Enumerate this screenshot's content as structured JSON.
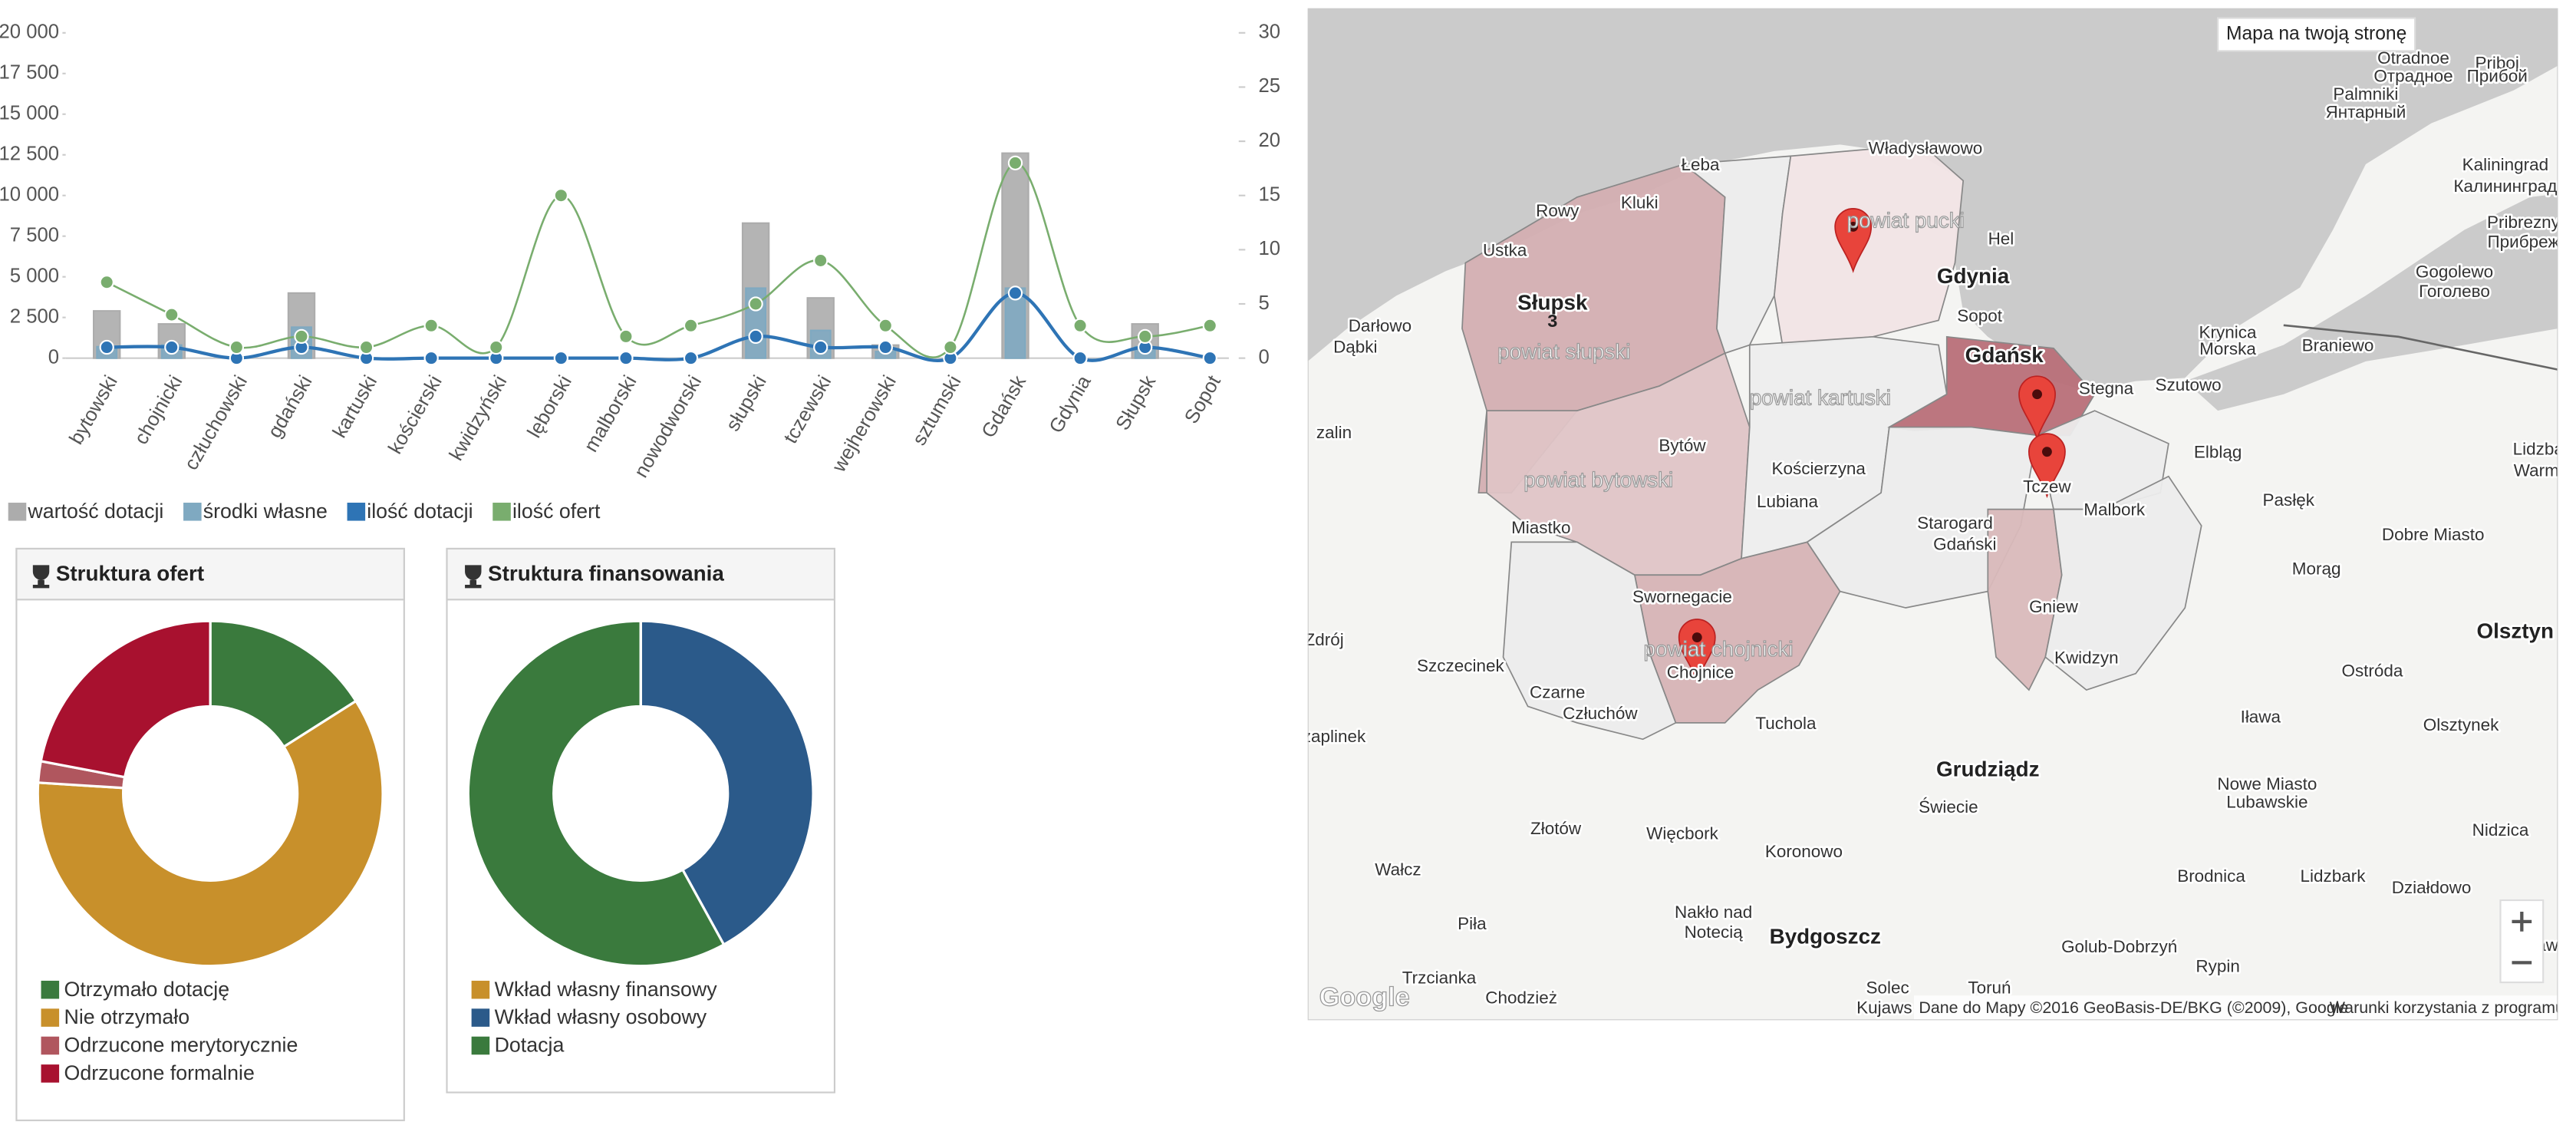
{
  "chart_data": [
    {
      "type": "combo",
      "categories": [
        "bytowski",
        "chojnicki",
        "człuchowski",
        "gdański",
        "kartuski",
        "kościerski",
        "kwidzyński",
        "lęborski",
        "malborski",
        "nowodworski",
        "słupski",
        "tczewski",
        "wejherowski",
        "sztumski",
        "Gdańsk",
        "Gdynia",
        "Słupsk",
        "Sopot"
      ],
      "ylim": [
        0,
        20000
      ],
      "yticks": [
        0,
        {
          "value": 2500,
          "label": "2 500"
        },
        {
          "value": 5000,
          "label": "5 000"
        },
        {
          "value": 7500,
          "label": "7 500"
        },
        {
          "value": 10000,
          "label": "10 000"
        },
        {
          "value": 12500,
          "label": "12 500"
        },
        {
          "value": 15000,
          "label": "15 000"
        },
        {
          "value": 17500,
          "label": "17 500"
        },
        {
          "value": 20000,
          "label": "20 000"
        }
      ],
      "y2lim": [
        0,
        30
      ],
      "y2ticks": [
        0,
        5,
        10,
        15,
        20,
        25,
        30
      ],
      "series": [
        {
          "name": "wartość dotacji",
          "type": "bar",
          "color": "#acacac",
          "values": [
            2900,
            2100,
            0,
            4000,
            0,
            0,
            0,
            0,
            0,
            0,
            8300,
            3700,
            800,
            0,
            12600,
            0,
            2100,
            0
          ]
        },
        {
          "name": "środki własne",
          "type": "bar",
          "color": "#7fa9c1",
          "values": [
            700,
            800,
            0,
            1900,
            0,
            0,
            0,
            0,
            0,
            0,
            4300,
            1700,
            400,
            0,
            4300,
            0,
            700,
            0
          ]
        },
        {
          "name": "ilość dotacji",
          "type": "line",
          "axis": "y2",
          "color": "#2e74b5",
          "values": [
            1,
            1,
            0,
            1,
            0,
            0,
            0,
            0,
            0,
            0,
            2,
            1,
            1,
            0,
            6,
            0,
            1,
            0
          ]
        },
        {
          "name": "ilość ofert",
          "type": "line",
          "axis": "y2",
          "color": "#79ad6e",
          "values": [
            7,
            4,
            1,
            2,
            1,
            3,
            1,
            15,
            2,
            3,
            5,
            9,
            3,
            1,
            18,
            3,
            2,
            3
          ]
        }
      ]
    },
    {
      "type": "donut",
      "title": "Struktura ofert",
      "categories": [
        "Otrzymało dotację",
        "Nie otrzymało",
        "Odrzucone merytorycznie",
        "Odrzucone formalnie"
      ],
      "values": [
        16,
        60,
        2,
        22
      ],
      "colors": [
        "#3a7a3d",
        "#c8902b",
        "#b0565e",
        "#a8112f"
      ]
    },
    {
      "type": "donut",
      "title": "Struktura finansowania",
      "categories": [
        "Wkład własny finansowy",
        "Wkład własny osobowy",
        "Dotacja"
      ],
      "values": [
        0,
        42,
        58
      ],
      "colors": [
        "#c8902b",
        "#2b5a8a",
        "#3a7a3d"
      ]
    }
  ],
  "map": {
    "button": "Mapa na twoją stronę",
    "google": "Google",
    "cluster": "3",
    "attribution": "Dane do Mapy ©2016 GeoBasis-DE/BKG (©2009), Google",
    "terms": "Warunki korzystania z programu",
    "labels": [
      "Władysławowo",
      "Łeba",
      "Kluki",
      "Rowy",
      "Ustka",
      "Słupsk",
      "powiat słupski",
      "Darłowo",
      "Dąbki",
      "powiat pucki",
      "Gdynia",
      "Sopot",
      "Gdańsk",
      "Hel",
      "powiat kartuski",
      "Bytów",
      "powiat bytowski",
      "Kościerzyna",
      "Lubiana",
      "Starogard",
      "Gdański",
      "Stegna",
      "Tczew",
      "Malbork",
      "Elbląg",
      "Miastko",
      "Swornegacie",
      "powiat chojnicki",
      "Chojnice",
      "Czarne",
      "Człuchów",
      "Tuchola",
      "Szczecinek",
      "Gniew",
      "Kwidzyn",
      "Grudziądz",
      "Świecie",
      "Złotów",
      "Więcbork",
      "Koronowo",
      "Wałcz",
      "Piła",
      "Nakło nad",
      "Notecią",
      "Bydgoszcz",
      "Toruń",
      "Chodzież",
      "Trzcianka",
      "Solec",
      "Kujaws",
      "Pasłęk",
      "Dobre Miasto",
      "Morąg",
      "Olsztyn",
      "Ostróda",
      "Olsztynek",
      "Iława",
      "Nowe Miasto",
      "Lubawskie",
      "Nidzica",
      "Brodnica",
      "Lidzbark",
      "Działdowo",
      "Golub-Dobrzyń",
      "Rypin",
      "Braniewo",
      "Krynica",
      "Morska",
      "Gogolewo",
      "Гоголево",
      "Kaliningrad",
      "Калининград",
      "Pribrezny",
      "Прибреж",
      "Otradnoe",
      "Отрадное",
      "Priboj",
      "Прибой",
      "Palmniki",
      "Янтарный",
      "zalin",
      "Zdrój",
      "zaplinek",
      "Lidzba",
      "Warmi",
      "Mław",
      "Szutowo"
    ]
  }
}
